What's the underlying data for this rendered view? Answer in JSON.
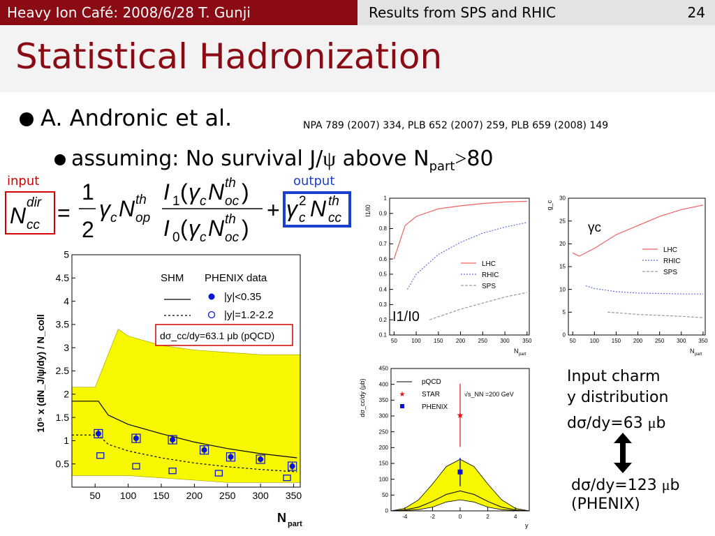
{
  "header": {
    "left": "Heavy Ion Café: 2008/6/28 T. Gunji",
    "center": "Results from SPS and RHIC",
    "page": "24"
  },
  "title": "Statistical Hadronization",
  "bullets": {
    "author": "A. Andronic et al.",
    "refs": "NPA 789 (2007) 334, PLB 652 (2007) 259, PLB 659 (2008) 149",
    "assumption_prefix": "assuming: No survival J/",
    "assumption_psi": "ψ",
    "assumption_mid": " above N",
    "assumption_sub": "part",
    "assumption_gt": ">",
    "assumption_value": "80"
  },
  "equation": {
    "input_label": "input",
    "output_label": "output",
    "lhs_N": "N",
    "lhs_sup": "dir",
    "lhs_sub": "cc",
    "eq": "=",
    "half_num": "1",
    "half_den": "2",
    "gamma": "γ",
    "c": "c",
    "op": "op",
    "th": "th",
    "oc": "oc",
    "I1": "I",
    "one": "1",
    "I0": "I",
    "zero": "0",
    "lparen": "(",
    "rparen": ")",
    "plus": "+",
    "two": "2",
    "cc": "cc"
  },
  "colors": {
    "header_bg": "#8b0b14",
    "title": "#8b0b14",
    "input_box": "#d40000",
    "output_box": "#1a3fcf",
    "band_yellow": "#f7f700",
    "phenix_blue": "#0a14d8",
    "lhc_red": "#f06060",
    "rhic_blue": "#5b6fe0",
    "sps_gray": "#9a9a9a"
  },
  "side_text": {
    "line1": "Input charm",
    "line2": "y distribution",
    "dsig_a": "dσ/dy=63 ",
    "mu_a": "μ",
    "b_a": "b",
    "dsig_b": "dσ/dy=123 ",
    "mu_b": "μ",
    "b_b": "b",
    "phenix": "(PHENIX)"
  },
  "chart_data": [
    {
      "type": "line",
      "xlabel": "N",
      "xlabel_sub": "part",
      "ylabel": "10⁵ x (dN_J/ψ/dy) / N_coll",
      "xlim": [
        15,
        360
      ],
      "ylim": [
        0,
        5
      ],
      "xticks": [
        50,
        100,
        150,
        200,
        250,
        300,
        350
      ],
      "yticks": [
        0.5,
        1,
        1.5,
        2,
        2.5,
        3,
        3.5,
        4,
        4.5,
        5
      ],
      "legend": {
        "col1_title": "SHM",
        "col2_title": "PHENIX data",
        "entry1": "|y|<0.35",
        "entry2": "|y|=1.2-2.2",
        "box": "dσ_cc/dy=63.1 μb (pQCD)"
      },
      "band": {
        "x": [
          15,
          50,
          85,
          100,
          150,
          200,
          250,
          300,
          360
        ],
        "lo": [
          0.25,
          0.25,
          0.25,
          0.25,
          0.2,
          0.15,
          0.1,
          0.1,
          0.1
        ],
        "hi": [
          2.15,
          2.15,
          3.4,
          3.25,
          3.05,
          2.95,
          2.9,
          2.85,
          2.85
        ]
      },
      "series": [
        {
          "name": "SHM |y|<0.35",
          "style": "solid",
          "x": [
            15,
            55,
            70,
            100,
            150,
            200,
            250,
            300,
            355
          ],
          "y": [
            1.85,
            1.85,
            1.55,
            1.35,
            1.15,
            0.97,
            0.83,
            0.72,
            0.63
          ]
        },
        {
          "name": "SHM |y|=1.2-2.2",
          "style": "dashed",
          "x": [
            15,
            55,
            70,
            100,
            150,
            200,
            250,
            300,
            355
          ],
          "y": [
            1.12,
            1.12,
            0.92,
            0.78,
            0.63,
            0.52,
            0.44,
            0.38,
            0.33
          ]
        },
        {
          "name": "|y|<0.35",
          "marker": "filled",
          "x": [
            55,
            112,
            167,
            215,
            255,
            300,
            348
          ],
          "y": [
            1.15,
            1.05,
            1.02,
            0.8,
            0.65,
            0.6,
            0.45
          ],
          "err": [
            0.1,
            0.1,
            0.1,
            0.1,
            0.08,
            0.07,
            0.08
          ]
        },
        {
          "name": "|y|=1.2-2.2",
          "marker": "open",
          "x": [
            58,
            112,
            167,
            237,
            340
          ],
          "y": [
            0.68,
            0.45,
            0.35,
            0.3,
            0.2
          ]
        }
      ]
    },
    {
      "type": "line",
      "xlabel": "N",
      "xlabel_sub": "part",
      "ylabel": "I1/I0",
      "annotation": "I1/I0",
      "xlim": [
        40,
        355
      ],
      "ylim": [
        0.1,
        1.0
      ],
      "xticks": [
        50,
        100,
        150,
        200,
        250,
        300,
        350
      ],
      "yticks": [
        0.1,
        0.2,
        0.3,
        0.4,
        0.5,
        0.6,
        0.7,
        0.8,
        0.9,
        1
      ],
      "series": [
        {
          "name": "LHC",
          "x": [
            50,
            75,
            100,
            150,
            200,
            250,
            300,
            350
          ],
          "y": [
            0.6,
            0.82,
            0.88,
            0.93,
            0.95,
            0.965,
            0.975,
            0.98
          ]
        },
        {
          "name": "RHIC",
          "x": [
            80,
            100,
            150,
            200,
            250,
            300,
            350
          ],
          "y": [
            0.4,
            0.5,
            0.63,
            0.71,
            0.77,
            0.81,
            0.84
          ]
        },
        {
          "name": "SPS",
          "x": [
            130,
            150,
            200,
            250,
            300,
            350
          ],
          "y": [
            0.2,
            0.22,
            0.27,
            0.31,
            0.35,
            0.38
          ]
        }
      ]
    },
    {
      "type": "line",
      "xlabel": "N",
      "xlabel_sub": "part",
      "ylabel": "g_c",
      "annotation": "γc",
      "xlim": [
        40,
        355
      ],
      "ylim": [
        0,
        30
      ],
      "xticks": [
        50,
        100,
        150,
        200,
        250,
        300,
        350
      ],
      "yticks": [
        0,
        5,
        10,
        15,
        20,
        25,
        30
      ],
      "series": [
        {
          "name": "LHC",
          "x": [
            50,
            65,
            100,
            150,
            200,
            250,
            300,
            350
          ],
          "y": [
            18,
            17.3,
            19,
            22,
            24,
            26,
            27.5,
            28.5
          ]
        },
        {
          "name": "RHIC",
          "x": [
            80,
            100,
            150,
            200,
            250,
            300,
            350
          ],
          "y": [
            10.8,
            10.2,
            9.5,
            9.2,
            9.1,
            9.0,
            9.0
          ]
        },
        {
          "name": "SPS",
          "x": [
            130,
            150,
            200,
            250,
            300,
            350
          ],
          "y": [
            5,
            4.9,
            4.5,
            4.3,
            4.1,
            3.8
          ]
        }
      ]
    },
    {
      "type": "line",
      "xlabel": "y",
      "ylabel": "dσ_cc/dy (μb)",
      "annotation": "√s_NN =200 GeV",
      "xlim": [
        -5,
        5
      ],
      "ylim": [
        0,
        450
      ],
      "xticks": [
        -4,
        -2,
        0,
        2,
        4
      ],
      "yticks": [
        0,
        50,
        100,
        150,
        200,
        250,
        300,
        350,
        400,
        450
      ],
      "band": {
        "x": [
          -5,
          -4,
          -3,
          -2,
          -1,
          0,
          1,
          2,
          3,
          4,
          5
        ],
        "lo": [
          0,
          1,
          4,
          12,
          28,
          35,
          28,
          12,
          4,
          1,
          0
        ],
        "hi": [
          0,
          8,
          35,
          85,
          140,
          163,
          140,
          85,
          35,
          8,
          0
        ]
      },
      "series": [
        {
          "name": "pQCD",
          "x": [
            -5,
            -4,
            -3,
            -2,
            -1,
            0,
            1,
            2,
            3,
            4,
            5
          ],
          "y": [
            0,
            3,
            12,
            30,
            52,
            63,
            52,
            30,
            12,
            3,
            0
          ]
        },
        {
          "name": "STAR",
          "marker": "star",
          "x": [
            0
          ],
          "y": [
            302
          ],
          "err_lo": [
            100
          ],
          "err_hi": [
            100
          ]
        },
        {
          "name": "PHENIX",
          "marker": "square",
          "x": [
            0
          ],
          "y": [
            123
          ],
          "err_lo": [
            45
          ],
          "err_hi": [
            45
          ]
        }
      ]
    }
  ]
}
